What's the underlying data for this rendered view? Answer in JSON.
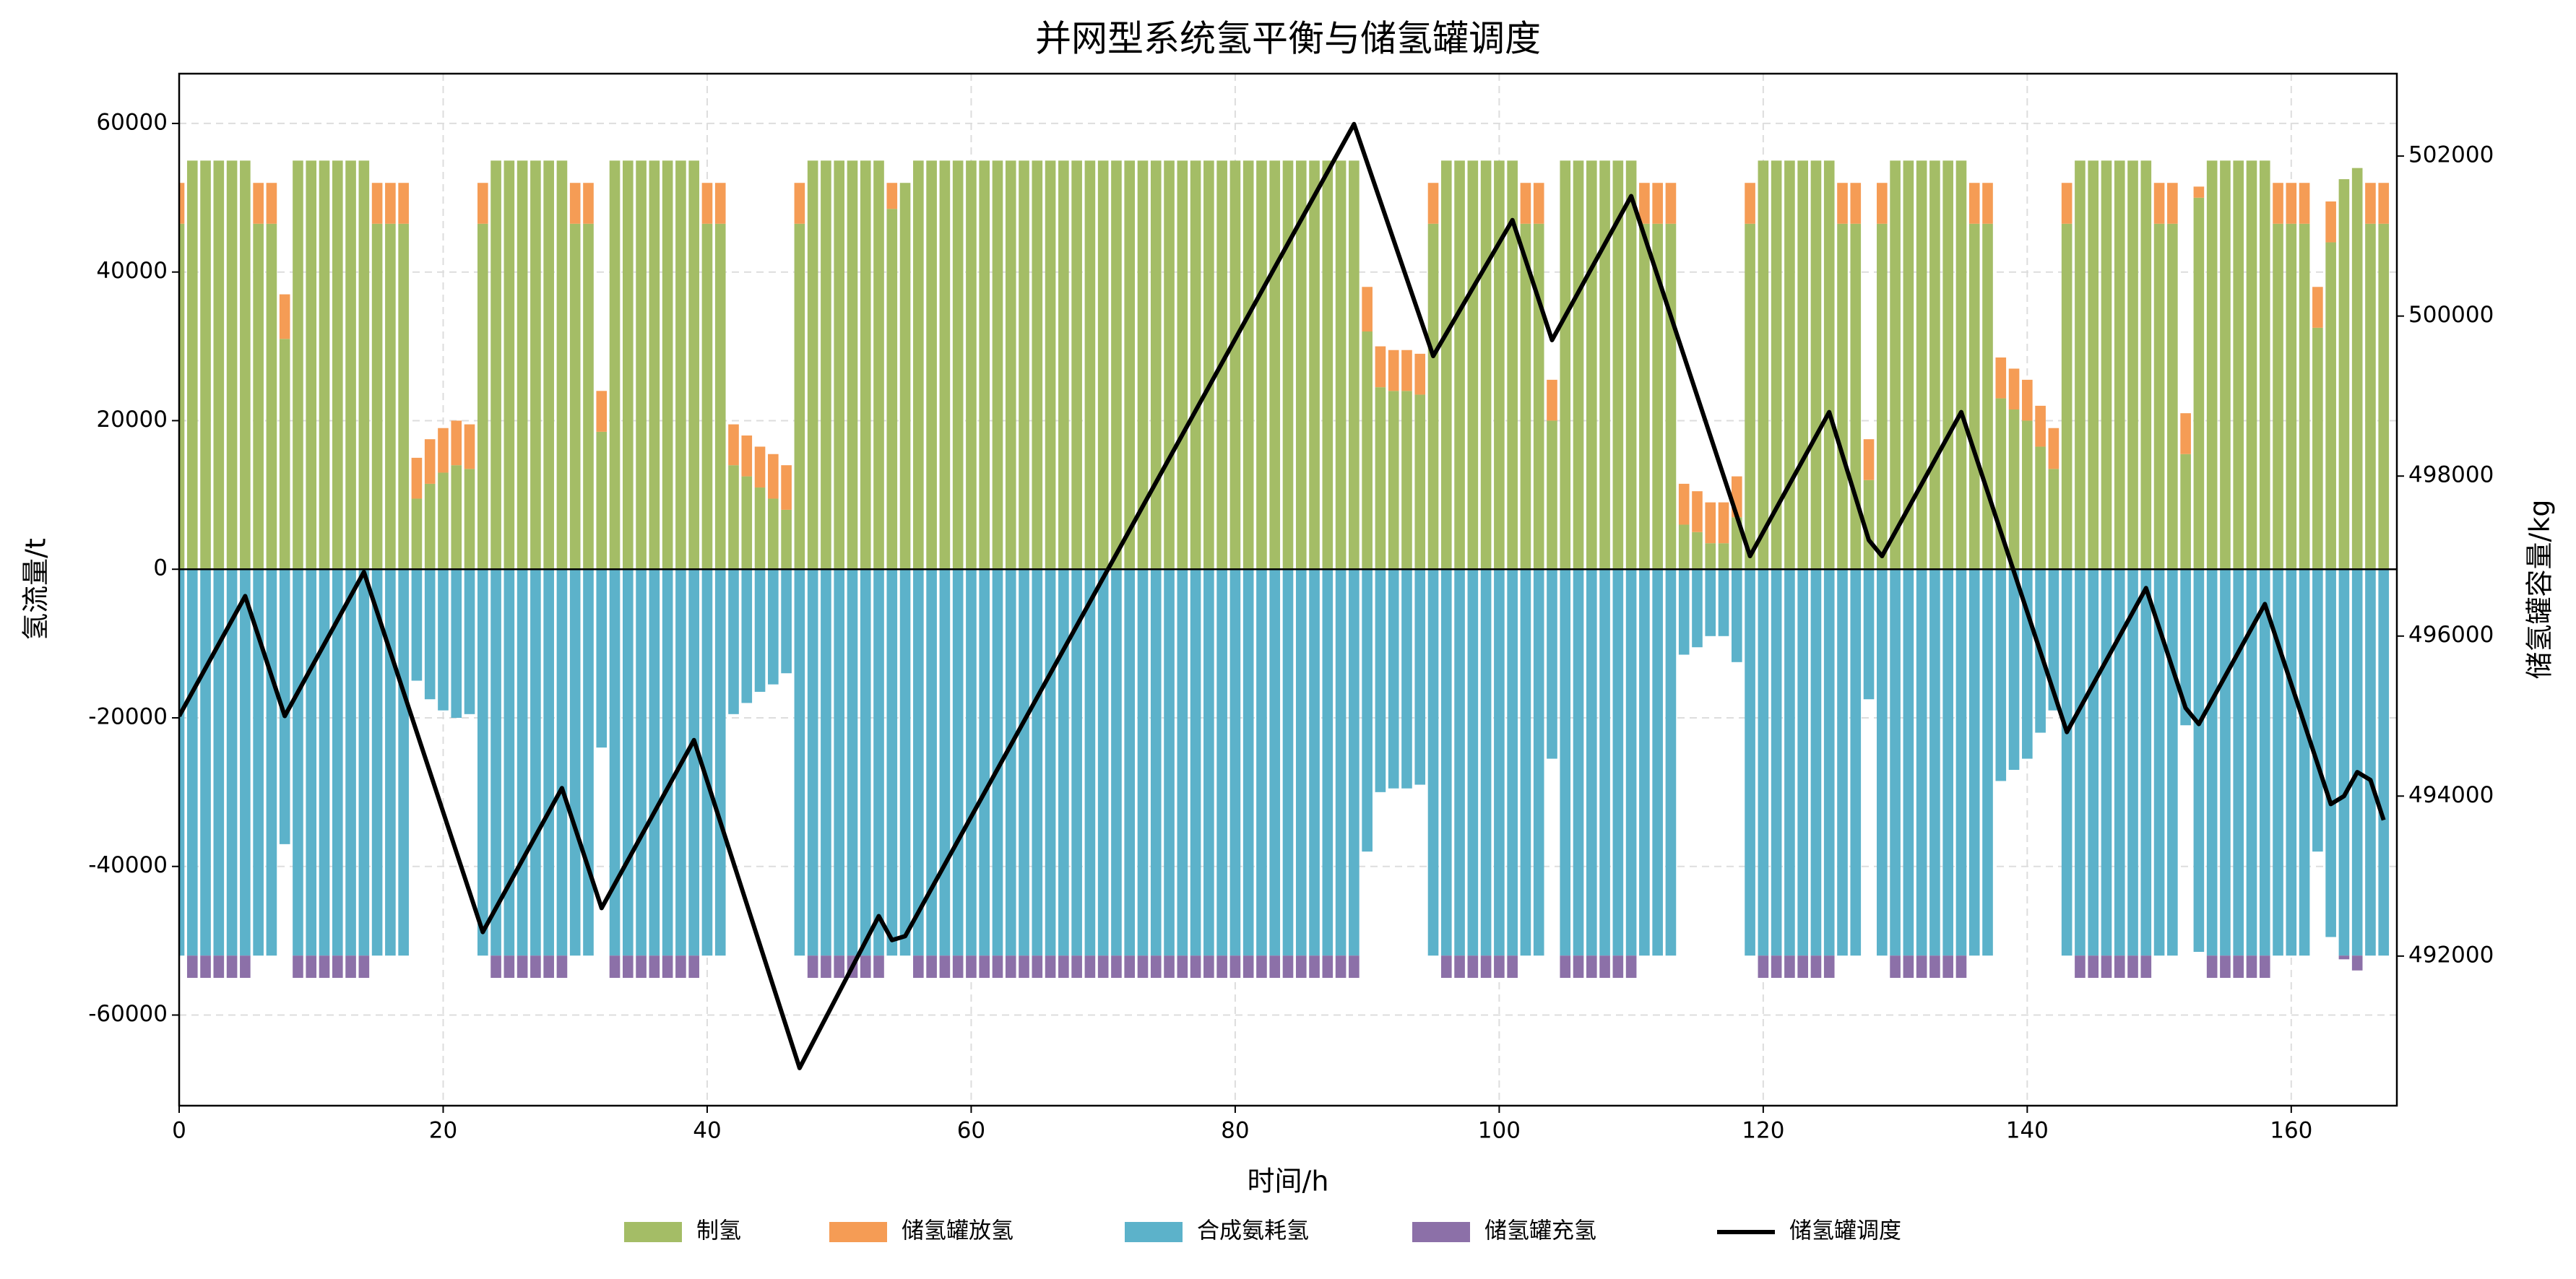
{
  "chart_data": {
    "type": "bar",
    "title": "并网型系统氢平衡与储氢罐调度",
    "xlabel": "时间/h",
    "ylabel": "氢流量/t",
    "y2label": "储氢罐容量/kg",
    "x": [
      0,
      1,
      2,
      3,
      4,
      5,
      6,
      7,
      8,
      9,
      10,
      11,
      12,
      13,
      14,
      15,
      16,
      17,
      18,
      19,
      20,
      21,
      22,
      23,
      24,
      25,
      26,
      27,
      28,
      29,
      30,
      31,
      32,
      33,
      34,
      35,
      36,
      37,
      38,
      39,
      40,
      41,
      42,
      43,
      44,
      45,
      46,
      47,
      48,
      49,
      50,
      51,
      52,
      53,
      54,
      55,
      56,
      57,
      58,
      59,
      60,
      61,
      62,
      63,
      64,
      65,
      66,
      67,
      68,
      69,
      70,
      71,
      72,
      73,
      74,
      75,
      76,
      77,
      78,
      79,
      80,
      81,
      82,
      83,
      84,
      85,
      86,
      87,
      88,
      89,
      90,
      91,
      92,
      93,
      94,
      95,
      96,
      97,
      98,
      99,
      100,
      101,
      102,
      103,
      104,
      105,
      106,
      107,
      108,
      109,
      110,
      111,
      112,
      113,
      114,
      115,
      116,
      117,
      118,
      119,
      120,
      121,
      122,
      123,
      124,
      125,
      126,
      127,
      128,
      129,
      130,
      131,
      132,
      133,
      134,
      135,
      136,
      137,
      138,
      139,
      140,
      141,
      142,
      143,
      144,
      145,
      146,
      147,
      148,
      149,
      150,
      151,
      152,
      153,
      154,
      155,
      156,
      157,
      158,
      159,
      160,
      161,
      162,
      163,
      164,
      165,
      166,
      167
    ],
    "xlim": [
      0,
      168
    ],
    "xticks": [
      0,
      20,
      40,
      60,
      80,
      100,
      120,
      140,
      160
    ],
    "ylim": [
      -72200,
      66700
    ],
    "yticks": [
      -60000,
      -40000,
      -20000,
      0,
      20000,
      40000,
      60000
    ],
    "y2lim": [
      490130,
      503030
    ],
    "y2ticks": [
      492000,
      494000,
      496000,
      498000,
      500000,
      502000
    ],
    "grid": true,
    "legend": "lower center",
    "series": [
      {
        "name": "制氢",
        "color": "#a4bd66",
        "values": [
          46500,
          55000,
          55000,
          55000,
          55000,
          55000,
          46500,
          46500,
          31000,
          55000,
          55000,
          55000,
          55000,
          55000,
          55000,
          46500,
          46500,
          46500,
          9500,
          11500,
          13000,
          14000,
          13500,
          46500,
          55000,
          55000,
          55000,
          55000,
          55000,
          55000,
          46500,
          46500,
          18500,
          55000,
          55000,
          55000,
          55000,
          55000,
          55000,
          55000,
          46500,
          46500,
          14000,
          12500,
          11000,
          9500,
          8000,
          46500,
          55000,
          55000,
          55000,
          55000,
          55000,
          55000,
          48500,
          52000,
          55000,
          55000,
          55000,
          55000,
          55000,
          55000,
          55000,
          55000,
          55000,
          55000,
          55000,
          55000,
          55000,
          55000,
          55000,
          55000,
          55000,
          55000,
          55000,
          55000,
          55000,
          55000,
          55000,
          55000,
          55000,
          55000,
          55000,
          55000,
          55000,
          55000,
          55000,
          55000,
          55000,
          55000,
          32000,
          24500,
          24000,
          24000,
          23500,
          46500,
          55000,
          55000,
          55000,
          55000,
          55000,
          55000,
          46500,
          46500,
          20000,
          55000,
          55000,
          55000,
          55000,
          55000,
          55000,
          46500,
          46500,
          46500,
          6000,
          5000,
          3500,
          3500,
          7000,
          46500,
          55000,
          55000,
          55000,
          55000,
          55000,
          55000,
          46500,
          46500,
          12000,
          46500,
          55000,
          55000,
          55000,
          55000,
          55000,
          55000,
          46500,
          46500,
          23000,
          21500,
          20000,
          16500,
          13500,
          46500,
          55000,
          55000,
          55000,
          55000,
          55000,
          55000,
          46500,
          46500,
          15500,
          50000,
          55000,
          55000,
          55000,
          55000,
          55000,
          46500,
          46500,
          46500,
          32500,
          44000,
          52500,
          54000,
          46500,
          46500
        ]
      },
      {
        "name": "储氢罐放氢",
        "color": "#f59c55",
        "values": [
          5500,
          0,
          0,
          0,
          0,
          0,
          5500,
          5500,
          6000,
          0,
          0,
          0,
          0,
          0,
          0,
          5500,
          5500,
          5500,
          5500,
          6000,
          6000,
          6000,
          6000,
          5500,
          0,
          0,
          0,
          0,
          0,
          0,
          5500,
          5500,
          5500,
          0,
          0,
          0,
          0,
          0,
          0,
          0,
          5500,
          5500,
          5500,
          5500,
          5500,
          6000,
          6000,
          5500,
          0,
          0,
          0,
          0,
          0,
          0,
          3500,
          0,
          0,
          0,
          0,
          0,
          0,
          0,
          0,
          0,
          0,
          0,
          0,
          0,
          0,
          0,
          0,
          0,
          0,
          0,
          0,
          0,
          0,
          0,
          0,
          0,
          0,
          0,
          0,
          0,
          0,
          0,
          0,
          0,
          0,
          0,
          6000,
          5500,
          5500,
          5500,
          5500,
          5500,
          0,
          0,
          0,
          0,
          0,
          0,
          5500,
          5500,
          5500,
          0,
          0,
          0,
          0,
          0,
          0,
          5500,
          5500,
          5500,
          5500,
          5500,
          5500,
          5500,
          5500,
          5500,
          0,
          0,
          0,
          0,
          0,
          0,
          5500,
          5500,
          5500,
          5500,
          0,
          0,
          0,
          0,
          0,
          0,
          5500,
          5500,
          5500,
          5500,
          5500,
          5500,
          5500,
          5500,
          0,
          0,
          0,
          0,
          0,
          0,
          5500,
          5500,
          5500,
          1500,
          0,
          0,
          0,
          0,
          0,
          5500,
          5500,
          5500,
          5500,
          5500,
          0,
          0,
          5500,
          5500
        ]
      },
      {
        "name": "合成氨耗氢",
        "color": "#5cb2ca",
        "values": [
          -52000,
          -52000,
          -52000,
          -52000,
          -52000,
          -52000,
          -52000,
          -52000,
          -37000,
          -52000,
          -52000,
          -52000,
          -52000,
          -52000,
          -52000,
          -52000,
          -52000,
          -52000,
          -15000,
          -17500,
          -19000,
          -20000,
          -19500,
          -52000,
          -52000,
          -52000,
          -52000,
          -52000,
          -52000,
          -52000,
          -52000,
          -52000,
          -24000,
          -52000,
          -52000,
          -52000,
          -52000,
          -52000,
          -52000,
          -52000,
          -52000,
          -52000,
          -19500,
          -18000,
          -16500,
          -15500,
          -14000,
          -52000,
          -52000,
          -52000,
          -52000,
          -52000,
          -52000,
          -52000,
          -52000,
          -52000,
          -52000,
          -52000,
          -52000,
          -52000,
          -52000,
          -52000,
          -52000,
          -52000,
          -52000,
          -52000,
          -52000,
          -52000,
          -52000,
          -52000,
          -52000,
          -52000,
          -52000,
          -52000,
          -52000,
          -52000,
          -52000,
          -52000,
          -52000,
          -52000,
          -52000,
          -52000,
          -52000,
          -52000,
          -52000,
          -52000,
          -52000,
          -52000,
          -52000,
          -52000,
          -38000,
          -30000,
          -29500,
          -29500,
          -29000,
          -52000,
          -52000,
          -52000,
          -52000,
          -52000,
          -52000,
          -52000,
          -52000,
          -52000,
          -25500,
          -52000,
          -52000,
          -52000,
          -52000,
          -52000,
          -52000,
          -52000,
          -52000,
          -52000,
          -11500,
          -10500,
          -9000,
          -9000,
          -12500,
          -52000,
          -52000,
          -52000,
          -52000,
          -52000,
          -52000,
          -52000,
          -52000,
          -52000,
          -17500,
          -52000,
          -52000,
          -52000,
          -52000,
          -52000,
          -52000,
          -52000,
          -52000,
          -52000,
          -28500,
          -27000,
          -25500,
          -22000,
          -19000,
          -52000,
          -52000,
          -52000,
          -52000,
          -52000,
          -52000,
          -52000,
          -52000,
          -52000,
          -21000,
          -51500,
          -52000,
          -52000,
          -52000,
          -52000,
          -52000,
          -52000,
          -52000,
          -52000,
          -38000,
          -49500,
          -52000,
          -52000,
          -52000,
          -52000
        ]
      },
      {
        "name": "储氢罐充氢",
        "color": "#8c70a8",
        "values": [
          0,
          -3000,
          -3000,
          -3000,
          -3000,
          -3000,
          0,
          0,
          0,
          -3000,
          -3000,
          -3000,
          -3000,
          -3000,
          -3000,
          0,
          0,
          0,
          0,
          0,
          0,
          0,
          0,
          0,
          -3000,
          -3000,
          -3000,
          -3000,
          -3000,
          -3000,
          0,
          0,
          0,
          -3000,
          -3000,
          -3000,
          -3000,
          -3000,
          -3000,
          -3000,
          0,
          0,
          0,
          0,
          0,
          0,
          0,
          0,
          -3000,
          -3000,
          -3000,
          -3000,
          -3000,
          -3000,
          0,
          0,
          -3000,
          -3000,
          -3000,
          -3000,
          -3000,
          -3000,
          -3000,
          -3000,
          -3000,
          -3000,
          -3000,
          -3000,
          -3000,
          -3000,
          -3000,
          -3000,
          -3000,
          -3000,
          -3000,
          -3000,
          -3000,
          -3000,
          -3000,
          -3000,
          -3000,
          -3000,
          -3000,
          -3000,
          -3000,
          -3000,
          -3000,
          -3000,
          -3000,
          -3000,
          0,
          0,
          0,
          0,
          0,
          0,
          -3000,
          -3000,
          -3000,
          -3000,
          -3000,
          -3000,
          0,
          0,
          0,
          -3000,
          -3000,
          -3000,
          -3000,
          -3000,
          -3000,
          0,
          0,
          0,
          0,
          0,
          0,
          0,
          0,
          0,
          -3000,
          -3000,
          -3000,
          -3000,
          -3000,
          -3000,
          0,
          0,
          0,
          0,
          -3000,
          -3000,
          -3000,
          -3000,
          -3000,
          -3000,
          0,
          0,
          0,
          0,
          0,
          0,
          0,
          0,
          -3000,
          -3000,
          -3000,
          -3000,
          -3000,
          -3000,
          0,
          0,
          0,
          0,
          -3000,
          -3000,
          -3000,
          -3000,
          -3000,
          0,
          0,
          0,
          0,
          0,
          -500,
          -2000,
          0,
          0
        ]
      },
      {
        "name": "储氢罐调度",
        "type": "line",
        "axis": "y2",
        "color": "#000000",
        "x": [
          0,
          5,
          8,
          14,
          23,
          29,
          32,
          39,
          47,
          53,
          54,
          55,
          89,
          95,
          101,
          104,
          110,
          119,
          125,
          128,
          129,
          135,
          143,
          149,
          152,
          153,
          158,
          163,
          164,
          165,
          166,
          167
        ],
        "values": [
          495000,
          496500,
          495000,
          496800,
          492300,
          494100,
          492600,
          494700,
          490600,
          492500,
          492200,
          492250,
          502400,
          499500,
          501200,
          499700,
          501500,
          497000,
          498800,
          497200,
          497000,
          498800,
          494800,
          496600,
          495100,
          494900,
          496400,
          493900,
          494000,
          494300,
          494200,
          493700
        ]
      }
    ]
  }
}
